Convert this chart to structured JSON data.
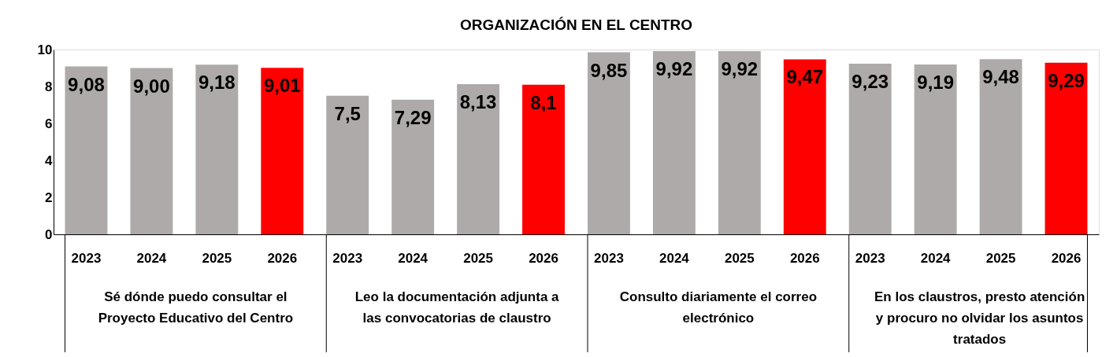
{
  "chart_data": {
    "type": "bar",
    "title": "ORGANIZACIÓN  EN EL CENTRO",
    "categories": [
      "2023",
      "2024",
      "2025",
      "2026",
      "2023",
      "2024",
      "2025",
      "2026",
      "2023",
      "2024",
      "2025",
      "2026",
      "2023",
      "2024",
      "2025",
      "2026"
    ],
    "values": [
      9.08,
      9.0,
      9.18,
      9.01,
      7.5,
      7.29,
      8.13,
      8.1,
      9.85,
      9.92,
      9.92,
      9.47,
      9.23,
      9.19,
      9.48,
      9.29
    ],
    "value_labels": [
      "9,08",
      "9,00",
      "9,18",
      "9,01",
      "7,5",
      "7,29",
      "8,13",
      "8,1",
      "9,85",
      "9,92",
      "9,92",
      "9,47",
      "9,23",
      "9,19",
      "9,48",
      "9,29"
    ],
    "colors": [
      "#aeaaaa",
      "#aeaaaa",
      "#aeaaaa",
      "#ff0000",
      "#aeaaaa",
      "#aeaaaa",
      "#aeaaaa",
      "#ff0000",
      "#aeaaaa",
      "#aeaaaa",
      "#aeaaaa",
      "#ff0000",
      "#aeaaaa",
      "#aeaaaa",
      "#aeaaaa",
      "#ff0000"
    ],
    "annotations": [
      "Sé dónde puedo consultar el Proyecto Educativo del Centro",
      "Leo la documentación adjunta a las convocatorias de claustro",
      "Consulto diariamente el correo electrónico",
      "En los claustros, presto atención y procuro no olvidar los asuntos tratados"
    ],
    "ylim": [
      0,
      10
    ],
    "yticks": [
      0,
      2,
      4,
      6,
      8,
      10
    ],
    "grid": false
  }
}
